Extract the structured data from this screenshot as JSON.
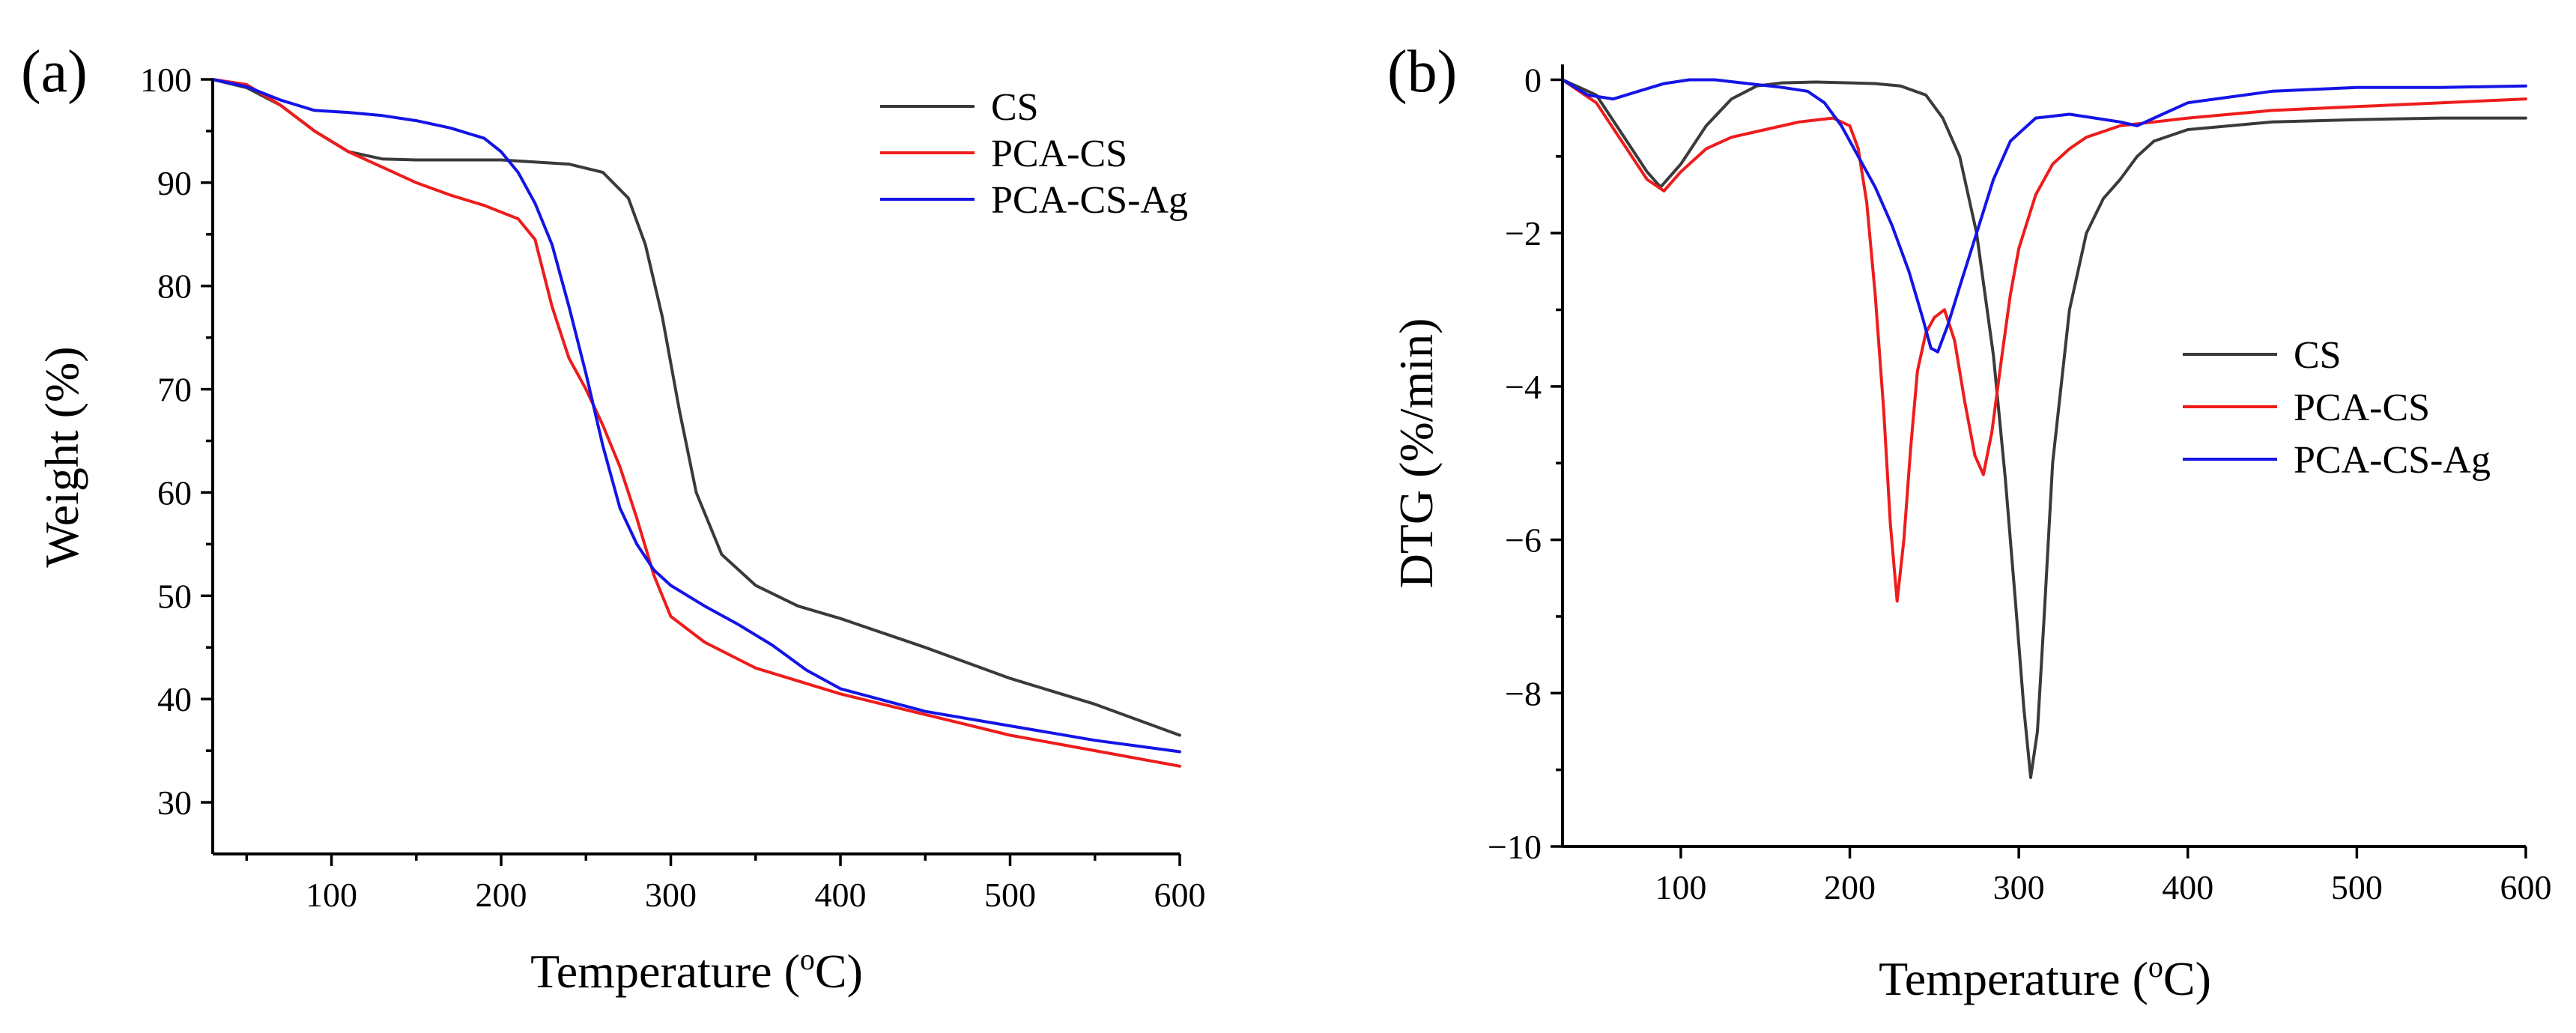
{
  "chart_data": [
    {
      "type": "line",
      "panel_label": "(a)",
      "xlabel": "Temperature (°C)",
      "xlabel_main": "Temperature (",
      "xlabel_sup": "o",
      "xlabel_end": "C)",
      "ylabel": "Weight (%)",
      "xlim": [
        30,
        600
      ],
      "ylim": [
        25,
        100
      ],
      "xticks": [
        100,
        200,
        300,
        400,
        500,
        600
      ],
      "yticks": [
        30,
        40,
        50,
        60,
        70,
        80,
        90,
        100
      ],
      "legend_position": "top-right",
      "series": [
        {
          "name": "CS",
          "color": "#3a3a3a",
          "x": [
            30,
            50,
            70,
            90,
            110,
            130,
            150,
            200,
            240,
            260,
            275,
            285,
            295,
            305,
            315,
            330,
            350,
            375,
            400,
            450,
            500,
            550,
            600
          ],
          "y": [
            100,
            99.2,
            97.5,
            95,
            93,
            92.3,
            92.2,
            92.2,
            91.8,
            91,
            88.5,
            84,
            77,
            68,
            60,
            54,
            51,
            49,
            47.8,
            45,
            42,
            39.5,
            36.5
          ]
        },
        {
          "name": "PCA-CS",
          "color": "#ee1c1c",
          "x": [
            30,
            50,
            70,
            90,
            110,
            130,
            150,
            170,
            190,
            210,
            220,
            230,
            240,
            250,
            260,
            270,
            280,
            290,
            300,
            320,
            350,
            400,
            450,
            500,
            550,
            600
          ],
          "y": [
            100,
            99.5,
            97.5,
            95,
            93,
            91.5,
            90,
            88.8,
            87.8,
            86.5,
            84.5,
            78,
            73,
            70,
            66.5,
            62.5,
            57.5,
            52,
            48,
            45.5,
            43,
            40.5,
            38.5,
            36.5,
            35,
            33.5
          ]
        },
        {
          "name": "PCA-CS-Ag",
          "color": "#1414e6",
          "x": [
            30,
            50,
            70,
            90,
            110,
            130,
            150,
            170,
            190,
            200,
            210,
            220,
            230,
            240,
            250,
            260,
            270,
            280,
            290,
            300,
            320,
            340,
            360,
            380,
            400,
            450,
            500,
            550,
            600
          ],
          "y": [
            100,
            99.3,
            98,
            97,
            96.8,
            96.5,
            96,
            95.3,
            94.3,
            93,
            91,
            88,
            84,
            78,
            71.5,
            64.5,
            58.5,
            55,
            52.5,
            51,
            49,
            47.2,
            45.2,
            42.8,
            41,
            38.8,
            37.4,
            36,
            34.9
          ]
        }
      ]
    },
    {
      "type": "line",
      "panel_label": "(b)",
      "xlabel": "Temperature (°C)",
      "xlabel_main": "Temperature (",
      "xlabel_sup": "o",
      "xlabel_end": "C)",
      "ylabel": "DTG (%/min)",
      "xlim": [
        30,
        600
      ],
      "ylim": [
        -10,
        0.2
      ],
      "xticks": [
        100,
        200,
        300,
        400,
        500,
        600
      ],
      "yticks": [
        0,
        -2,
        -4,
        -6,
        -8,
        -10
      ],
      "ytick_labels": [
        "0",
        "−2",
        "−4",
        "−6",
        "−8",
        "−10"
      ],
      "legend_position": "center-right",
      "series": [
        {
          "name": "CS",
          "color": "#3a3a3a",
          "x": [
            30,
            50,
            65,
            80,
            88,
            100,
            115,
            130,
            145,
            160,
            180,
            200,
            215,
            230,
            245,
            255,
            265,
            275,
            285,
            292,
            298,
            303,
            307,
            311,
            315,
            320,
            330,
            340,
            350,
            360,
            370,
            380,
            400,
            450,
            500,
            550,
            600
          ],
          "y": [
            0,
            -0.2,
            -0.7,
            -1.2,
            -1.4,
            -1.1,
            -0.6,
            -0.25,
            -0.08,
            -0.04,
            -0.03,
            -0.04,
            -0.05,
            -0.08,
            -0.2,
            -0.5,
            -1,
            -2,
            -3.6,
            -5.2,
            -6.8,
            -8.2,
            -9.1,
            -8.5,
            -7,
            -5,
            -3,
            -2,
            -1.55,
            -1.3,
            -1,
            -0.8,
            -0.65,
            -0.55,
            -0.52,
            -0.5,
            -0.5
          ]
        },
        {
          "name": "PCA-CS",
          "color": "#ee1c1c",
          "x": [
            30,
            50,
            65,
            80,
            90,
            100,
            115,
            130,
            150,
            170,
            190,
            200,
            205,
            210,
            215,
            220,
            224,
            228,
            232,
            236,
            240,
            245,
            250,
            256,
            262,
            268,
            274,
            279,
            284,
            290,
            295,
            300,
            310,
            320,
            330,
            340,
            360,
            380,
            400,
            450,
            500,
            550,
            600
          ],
          "y": [
            0,
            -0.3,
            -0.8,
            -1.3,
            -1.45,
            -1.2,
            -0.9,
            -0.75,
            -0.65,
            -0.55,
            -0.5,
            -0.6,
            -0.9,
            -1.6,
            -2.8,
            -4.3,
            -5.8,
            -6.8,
            -6,
            -4.8,
            -3.8,
            -3.3,
            -3.1,
            -3,
            -3.4,
            -4.2,
            -4.9,
            -5.15,
            -4.6,
            -3.6,
            -2.8,
            -2.2,
            -1.5,
            -1.1,
            -0.9,
            -0.75,
            -0.6,
            -0.55,
            -0.5,
            -0.4,
            -0.35,
            -0.3,
            -0.25
          ]
        },
        {
          "name": "PCA-CS-Ag",
          "color": "#1414e6",
          "x": [
            30,
            45,
            60,
            75,
            90,
            105,
            120,
            140,
            160,
            175,
            185,
            195,
            205,
            215,
            225,
            235,
            243,
            248,
            252,
            258,
            265,
            275,
            285,
            295,
            310,
            330,
            345,
            360,
            370,
            385,
            400,
            450,
            500,
            550,
            600
          ],
          "y": [
            0,
            -0.2,
            -0.25,
            -0.15,
            -0.05,
            0,
            0,
            -0.05,
            -0.1,
            -0.15,
            -0.3,
            -0.6,
            -1,
            -1.4,
            -1.9,
            -2.5,
            -3.1,
            -3.5,
            -3.55,
            -3.2,
            -2.7,
            -2,
            -1.3,
            -0.8,
            -0.5,
            -0.45,
            -0.5,
            -0.55,
            -0.6,
            -0.45,
            -0.3,
            -0.15,
            -0.1,
            -0.1,
            -0.08
          ]
        }
      ]
    }
  ]
}
